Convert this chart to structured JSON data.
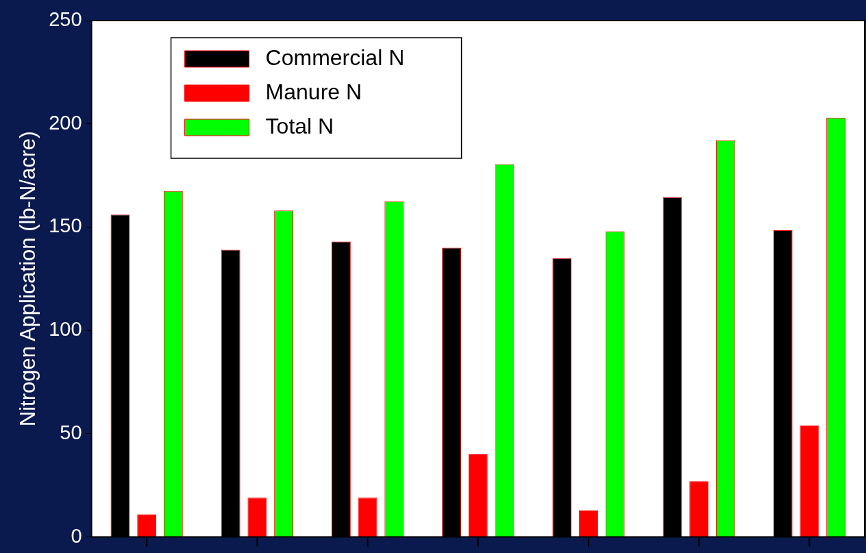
{
  "chart_data": {
    "type": "bar",
    "ylabel": "Nitrogen Application (lb-N/acre)",
    "categories": [
      null,
      null,
      null,
      null,
      null,
      null,
      null
    ],
    "series": [
      {
        "name": "Commercial N",
        "color": "#000000",
        "values": [
          156,
          139,
          143,
          140,
          135,
          164.5,
          148.5
        ]
      },
      {
        "name": "Manure N",
        "color": "#ff0000",
        "values": [
          11,
          19,
          19,
          40,
          13,
          27,
          54
        ]
      },
      {
        "name": "Total N",
        "color": "#00ff00",
        "values": [
          167.5,
          158,
          162.5,
          180.5,
          148,
          192,
          203
        ]
      }
    ],
    "ylim": [
      0,
      250
    ],
    "yticks": [
      0,
      50,
      100,
      150,
      200,
      250
    ],
    "grid": false,
    "legend": "top left",
    "tick_labels": "y"
  }
}
